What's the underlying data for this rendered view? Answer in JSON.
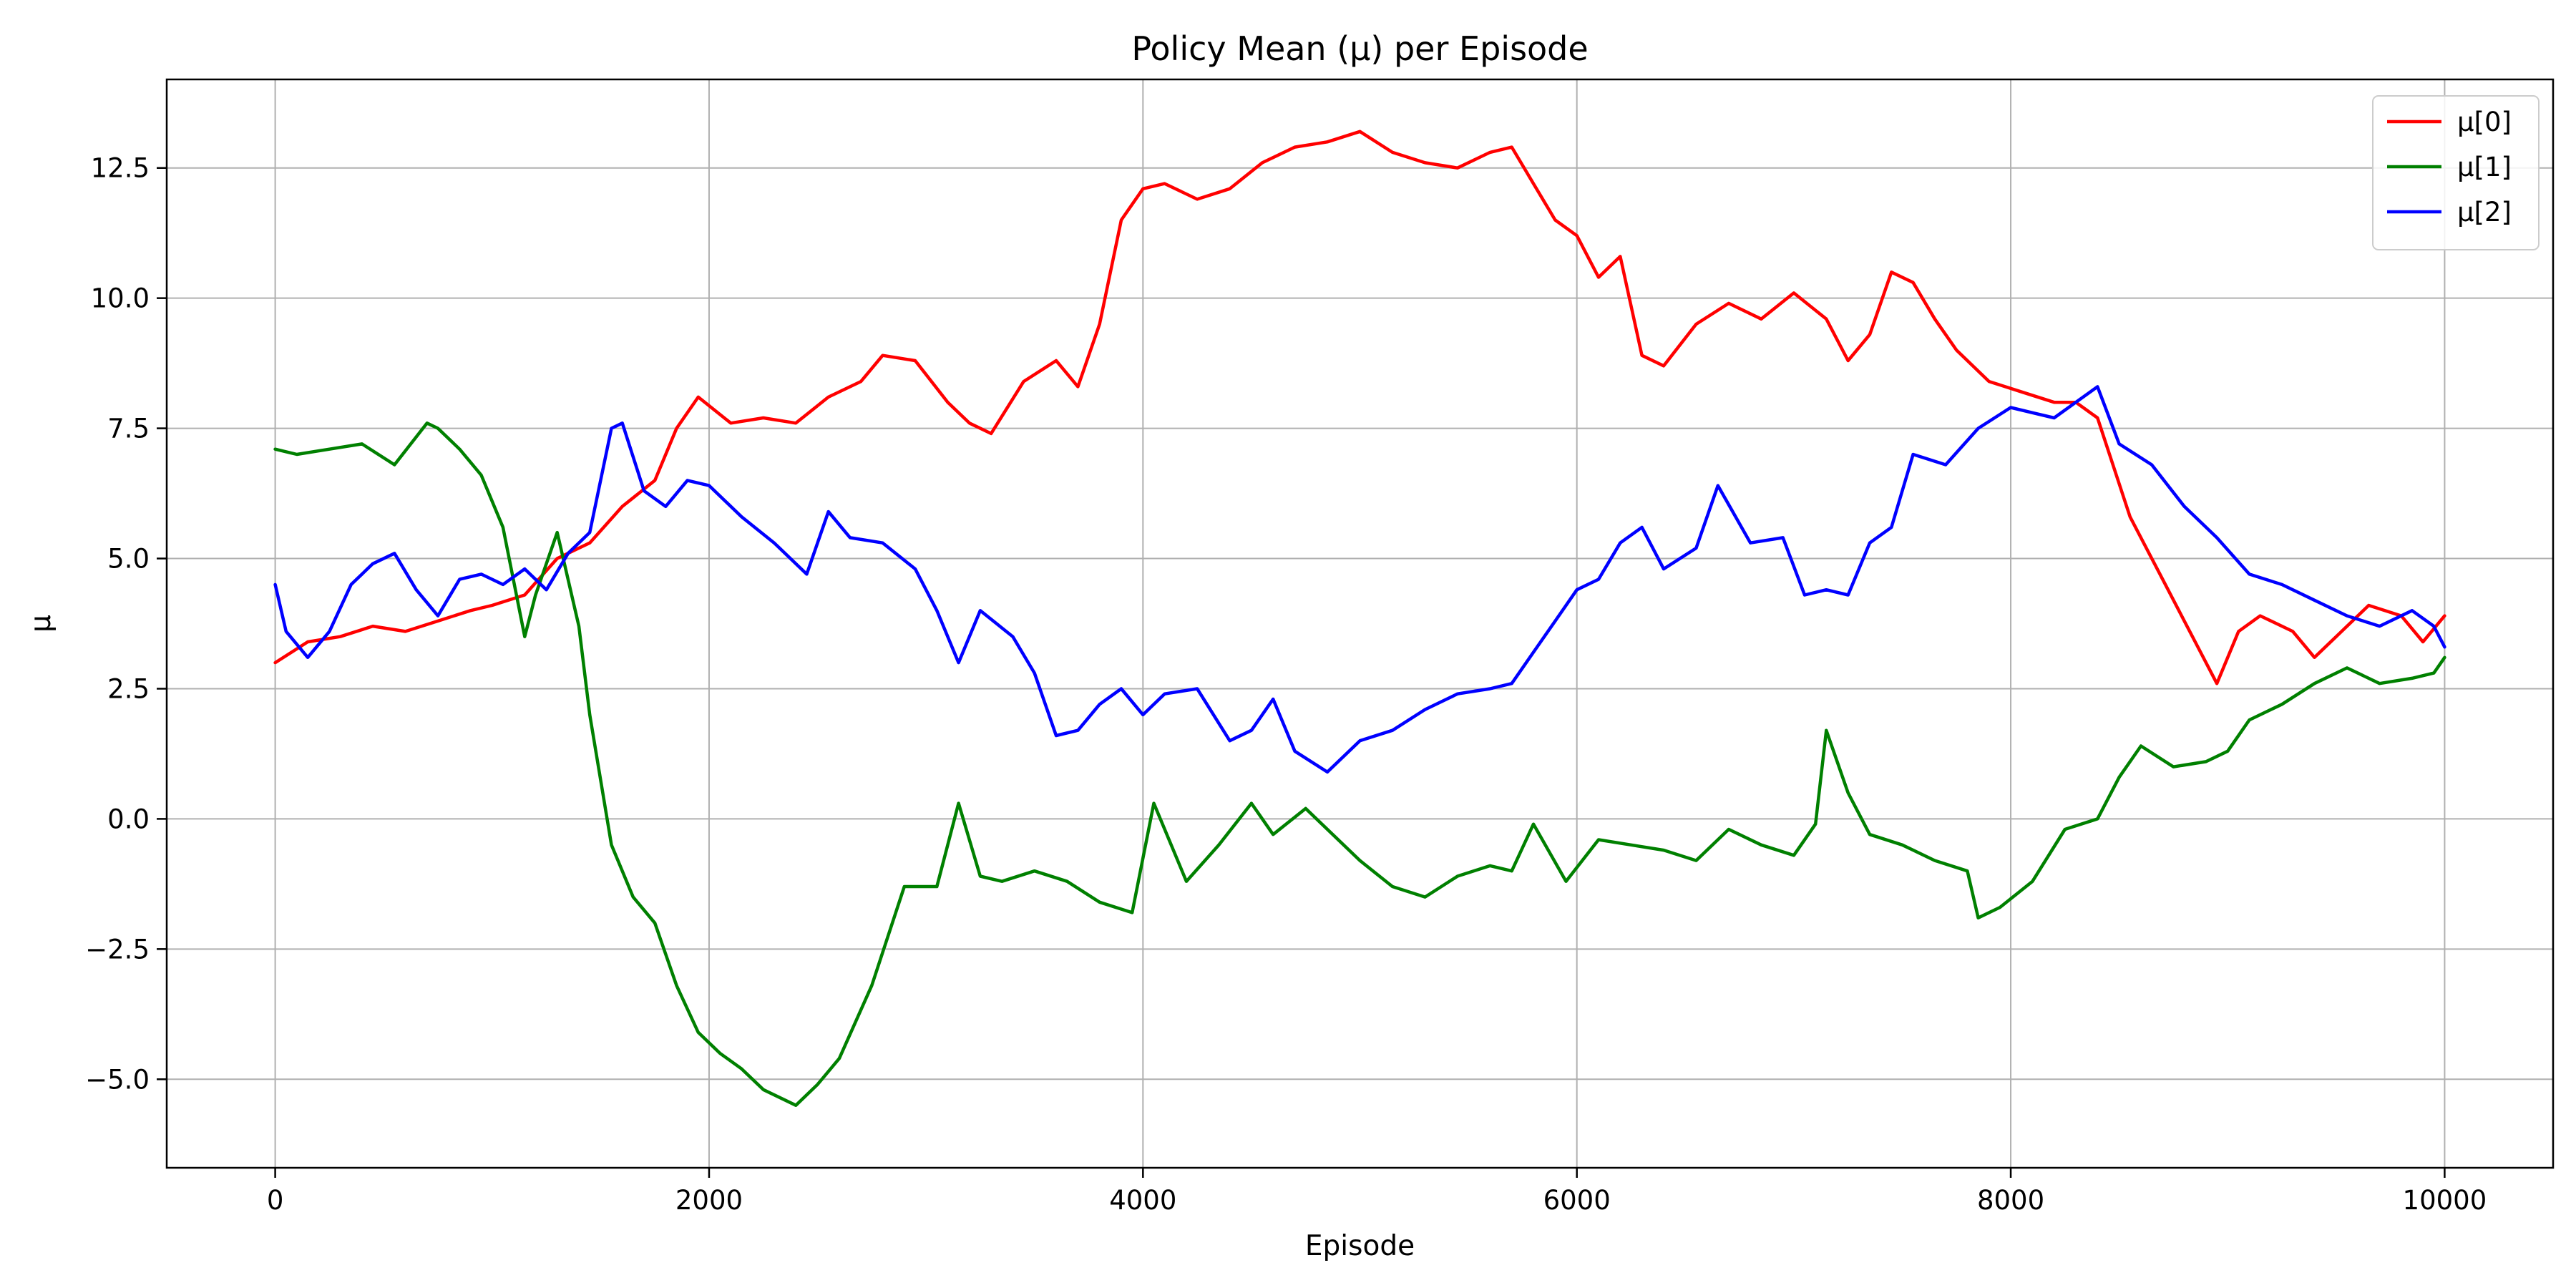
{
  "chart_data": {
    "type": "line",
    "title": "Policy Mean (μ) per Episode",
    "xlabel": "Episode",
    "ylabel": "μ",
    "xlim": [
      -500,
      10500
    ],
    "ylim": [
      -6.7,
      14.2
    ],
    "xticks": [
      0,
      2000,
      4000,
      6000,
      8000,
      10000
    ],
    "xtick_labels": [
      "0",
      "2000",
      "4000",
      "6000",
      "8000",
      "10000"
    ],
    "yticks": [
      -5.0,
      -2.5,
      0.0,
      2.5,
      5.0,
      7.5,
      10.0,
      12.5
    ],
    "ytick_labels": [
      "−5.0",
      "−2.5",
      "0.0",
      "2.5",
      "5.0",
      "7.5",
      "10.0",
      "12.5"
    ],
    "grid": true,
    "legend_position": "top-right",
    "series": [
      {
        "name": "μ[0]",
        "color": "#ff0000",
        "x": [
          0,
          150,
          300,
          450,
          600,
          750,
          900,
          1000,
          1150,
          1300,
          1450,
          1600,
          1750,
          1850,
          1950,
          2100,
          2250,
          2400,
          2550,
          2700,
          2800,
          2950,
          3100,
          3200,
          3300,
          3450,
          3600,
          3700,
          3800,
          3900,
          4000,
          4100,
          4250,
          4400,
          4550,
          4700,
          4850,
          5000,
          5150,
          5300,
          5450,
          5600,
          5700,
          5800,
          5900,
          6000,
          6100,
          6200,
          6300,
          6400,
          6550,
          6700,
          6850,
          7000,
          7150,
          7250,
          7350,
          7450,
          7550,
          7650,
          7750,
          7900,
          8050,
          8200,
          8300,
          8400,
          8550,
          8700,
          8850,
          8950,
          9050,
          9150,
          9300,
          9400,
          9500,
          9650,
          9800,
          9900,
          10000
        ],
        "y": [
          3.0,
          3.4,
          3.5,
          3.7,
          3.6,
          3.8,
          4.0,
          4.1,
          4.3,
          5.0,
          5.3,
          6.0,
          6.5,
          7.5,
          8.1,
          7.6,
          7.7,
          7.6,
          8.1,
          8.4,
          8.9,
          8.8,
          8.0,
          7.6,
          7.4,
          8.4,
          8.8,
          8.3,
          9.5,
          11.5,
          12.1,
          12.2,
          11.9,
          12.1,
          12.6,
          12.9,
          13.0,
          13.2,
          12.8,
          12.6,
          12.5,
          12.8,
          12.9,
          12.2,
          11.5,
          11.2,
          10.4,
          10.8,
          8.9,
          8.7,
          9.5,
          9.9,
          9.6,
          10.1,
          9.6,
          8.8,
          9.3,
          10.5,
          10.3,
          9.6,
          9.0,
          8.4,
          8.2,
          8.0,
          8.0,
          7.7,
          5.8,
          4.6,
          3.4,
          2.6,
          3.6,
          3.9,
          3.6,
          3.1,
          3.5,
          4.1,
          3.9,
          3.4,
          3.9
        ]
      },
      {
        "name": "μ[1]",
        "color": "#008000",
        "x": [
          0,
          100,
          250,
          400,
          550,
          700,
          750,
          850,
          950,
          1050,
          1150,
          1200,
          1300,
          1400,
          1450,
          1550,
          1650,
          1750,
          1850,
          1950,
          2050,
          2150,
          2250,
          2400,
          2500,
          2600,
          2750,
          2900,
          3050,
          3150,
          3250,
          3350,
          3500,
          3650,
          3800,
          3950,
          4050,
          4200,
          4350,
          4500,
          4600,
          4750,
          4850,
          5000,
          5150,
          5300,
          5450,
          5600,
          5700,
          5800,
          5950,
          6100,
          6250,
          6400,
          6550,
          6700,
          6850,
          7000,
          7100,
          7150,
          7250,
          7350,
          7500,
          7650,
          7800,
          7850,
          7950,
          8100,
          8250,
          8400,
          8500,
          8600,
          8750,
          8900,
          9000,
          9100,
          9250,
          9400,
          9550,
          9700,
          9850,
          9950,
          10000
        ],
        "y": [
          7.1,
          7.0,
          7.1,
          7.2,
          6.8,
          7.6,
          7.5,
          7.1,
          6.6,
          5.6,
          3.5,
          4.3,
          5.5,
          3.7,
          2.0,
          -0.5,
          -1.5,
          -2.0,
          -3.2,
          -4.1,
          -4.5,
          -4.8,
          -5.2,
          -5.5,
          -5.1,
          -4.6,
          -3.2,
          -1.3,
          -1.3,
          0.3,
          -1.1,
          -1.2,
          -1.0,
          -1.2,
          -1.6,
          -1.8,
          0.3,
          -1.2,
          -0.5,
          0.3,
          -0.3,
          0.2,
          -0.2,
          -0.8,
          -1.3,
          -1.5,
          -1.1,
          -0.9,
          -1.0,
          -0.1,
          -1.2,
          -0.4,
          -0.5,
          -0.6,
          -0.8,
          -0.2,
          -0.5,
          -0.7,
          -0.1,
          1.7,
          0.5,
          -0.3,
          -0.5,
          -0.8,
          -1.0,
          -1.9,
          -1.7,
          -1.2,
          -0.2,
          0.0,
          0.8,
          1.4,
          1.0,
          1.1,
          1.3,
          1.9,
          2.2,
          2.6,
          2.9,
          2.6,
          2.7,
          2.8,
          3.1
        ]
      },
      {
        "name": "μ[2]",
        "color": "#0000ff",
        "x": [
          0,
          50,
          150,
          250,
          350,
          450,
          550,
          650,
          750,
          850,
          950,
          1050,
          1150,
          1250,
          1350,
          1450,
          1550,
          1600,
          1700,
          1800,
          1900,
          2000,
          2150,
          2300,
          2450,
          2550,
          2650,
          2800,
          2950,
          3050,
          3150,
          3250,
          3400,
          3500,
          3600,
          3700,
          3800,
          3900,
          4000,
          4100,
          4250,
          4400,
          4500,
          4600,
          4700,
          4850,
          5000,
          5150,
          5300,
          5450,
          5600,
          5700,
          5800,
          5900,
          6000,
          6100,
          6200,
          6300,
          6400,
          6550,
          6650,
          6800,
          6950,
          7050,
          7150,
          7250,
          7350,
          7450,
          7550,
          7700,
          7850,
          8000,
          8100,
          8200,
          8300,
          8400,
          8500,
          8650,
          8800,
          8950,
          9100,
          9250,
          9400,
          9550,
          9700,
          9850,
          9950,
          10000
        ],
        "y": [
          4.5,
          3.6,
          3.1,
          3.6,
          4.5,
          4.9,
          5.1,
          4.4,
          3.9,
          4.6,
          4.7,
          4.5,
          4.8,
          4.4,
          5.1,
          5.5,
          7.5,
          7.6,
          6.3,
          6.0,
          6.5,
          6.4,
          5.8,
          5.3,
          4.7,
          5.9,
          5.4,
          5.3,
          4.8,
          4.0,
          3.0,
          4.0,
          3.5,
          2.8,
          1.6,
          1.7,
          2.2,
          2.5,
          2.0,
          2.4,
          2.5,
          1.5,
          1.7,
          2.3,
          1.3,
          0.9,
          1.5,
          1.7,
          2.1,
          2.4,
          2.5,
          2.6,
          3.2,
          3.8,
          4.4,
          4.6,
          5.3,
          5.6,
          4.8,
          5.2,
          6.4,
          5.3,
          5.4,
          4.3,
          4.4,
          4.3,
          5.3,
          5.6,
          7.0,
          6.8,
          7.5,
          7.9,
          7.8,
          7.7,
          8.0,
          8.3,
          7.2,
          6.8,
          6.0,
          5.4,
          4.7,
          4.5,
          4.2,
          3.9,
          3.7,
          4.0,
          3.7,
          3.3
        ]
      }
    ]
  }
}
